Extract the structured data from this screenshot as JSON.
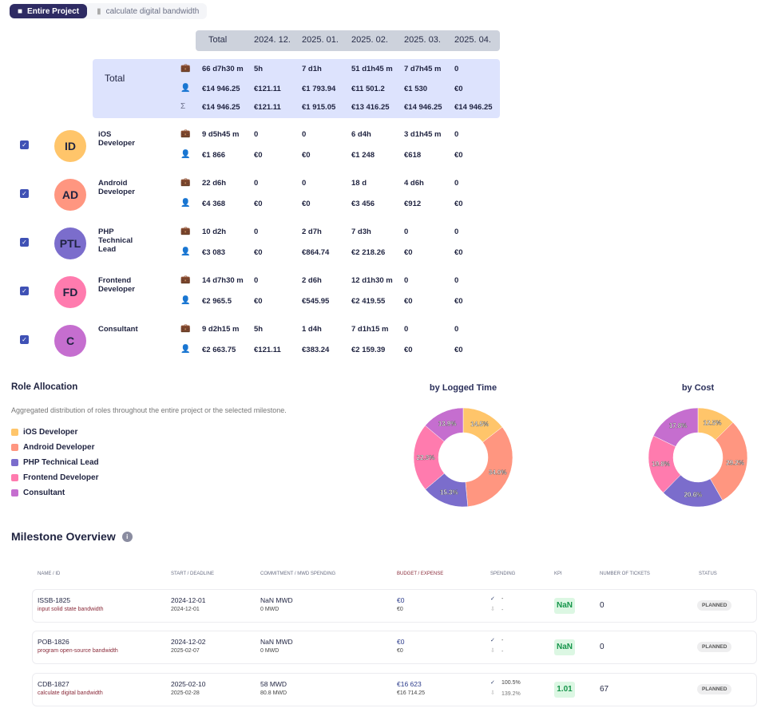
{
  "tabs": {
    "active": "Entire Project",
    "other": "calculate digital bandwidth"
  },
  "header": [
    "Total",
    "2024. 12.",
    "2025. 01.",
    "2025. 02.",
    "2025. 03.",
    "2025. 04."
  ],
  "total": {
    "label": "Total",
    "time": [
      "66 d7h30 m",
      "5h",
      "7 d1h",
      "51 d1h45 m",
      "7 d7h45 m",
      "0"
    ],
    "cost": [
      "€14 946.25",
      "€121.11",
      "€1 793.94",
      "€11 501.2",
      "€1 530",
      "€0"
    ],
    "cumulative": [
      "€14 946.25",
      "€121.11",
      "€1 915.05",
      "€13 416.25",
      "€14 946.25",
      "€14 946.25"
    ]
  },
  "roles": [
    {
      "initials": "ID",
      "name": "iOS Developer",
      "color": "#ffc56a",
      "time": [
        "9 d5h45 m",
        "0",
        "0",
        "6 d4h",
        "3 d1h45 m",
        "0"
      ],
      "cost": [
        "€1 866",
        "€0",
        "€0",
        "€1 248",
        "€618",
        "€0"
      ]
    },
    {
      "initials": "AD",
      "name": "Android Developer",
      "color": "#ff9680",
      "time": [
        "22 d6h",
        "0",
        "0",
        "18 d",
        "4 d6h",
        "0"
      ],
      "cost": [
        "€4 368",
        "€0",
        "€0",
        "€3 456",
        "€912",
        "€0"
      ]
    },
    {
      "initials": "PTL",
      "name": "PHP Technical Lead",
      "color": "#7b6dcc",
      "time": [
        "10 d2h",
        "0",
        "2 d7h",
        "7 d3h",
        "0",
        "0"
      ],
      "cost": [
        "€3 083",
        "€0",
        "€864.74",
        "€2 218.26",
        "€0",
        "€0"
      ]
    },
    {
      "initials": "FD",
      "name": "Frontend Developer",
      "color": "#ff7bae",
      "time": [
        "14 d7h30 m",
        "0",
        "2 d6h",
        "12 d1h30 m",
        "0",
        "0"
      ],
      "cost": [
        "€2 965.5",
        "€0",
        "€545.95",
        "€2 419.55",
        "€0",
        "€0"
      ]
    },
    {
      "initials": "C",
      "name": "Consultant",
      "color": "#c56ecf",
      "time": [
        "9 d2h15 m",
        "5h",
        "1 d4h",
        "7 d1h15 m",
        "0",
        "0"
      ],
      "cost": [
        "€2 663.75",
        "€121.11",
        "€383.24",
        "€2 159.39",
        "€0",
        "€0"
      ]
    }
  ],
  "allocation": {
    "title": "Role Allocation",
    "description": "Aggregated distribution of roles throughout the entire project or the selected milestone."
  },
  "chart_data": [
    {
      "type": "pie",
      "title": "by Logged Time",
      "categories": [
        "iOS Developer",
        "Android Developer",
        "PHP Technical Lead",
        "Frontend Developer",
        "Consultant"
      ],
      "values": [
        14.5,
        34.0,
        15.3,
        22.3,
        13.9
      ],
      "labels": [
        "14.5%",
        "34.0%",
        "15.3%",
        "22.3%",
        "13.9%"
      ]
    },
    {
      "type": "pie",
      "title": "by Cost",
      "categories": [
        "iOS Developer",
        "Android Developer",
        "PHP Technical Lead",
        "Frontend Developer",
        "Consultant"
      ],
      "values": [
        12.5,
        29.2,
        20.6,
        19.8,
        17.8
      ],
      "labels": [
        "12.5%",
        "29.2%",
        "20.6%",
        "19.8%",
        "17.8%"
      ]
    }
  ],
  "milestones": {
    "title": "Milestone Overview",
    "columns": [
      "Name / ID",
      "Start / Deadline",
      "Commitment / MWD Spending",
      "Budget / Expense",
      "Spending",
      "KPI",
      "Number of tickets",
      "Status"
    ],
    "rows": [
      {
        "id": "ISSB-1825",
        "name": "input solid state bandwidth",
        "start": "2024-12-01",
        "deadline": "2024-12-01",
        "commitment": "NaN MWD",
        "mwd": "0 MWD",
        "budget": "€0",
        "expense": "€0",
        "spend1": "-",
        "spend2": "-",
        "kpi": "NaN",
        "tickets": "0",
        "status": "PLANNED"
      },
      {
        "id": "POB-1826",
        "name": "program open-source bandwidth",
        "start": "2024-12-02",
        "deadline": "2025-02-07",
        "commitment": "NaN MWD",
        "mwd": "0 MWD",
        "budget": "€0",
        "expense": "€0",
        "spend1": "-",
        "spend2": "-",
        "kpi": "NaN",
        "tickets": "0",
        "status": "PLANNED"
      },
      {
        "id": "CDB-1827",
        "name": "calculate digital bandwidth",
        "start": "2025-02-10",
        "deadline": "2025-02-28",
        "commitment": "58 MWD",
        "mwd": "80.8 MWD",
        "budget": "€16 623",
        "expense": "€16 714.25",
        "spend1": "100.5%",
        "spend2": "139.2%",
        "kpi": "1.01",
        "tickets": "67",
        "status": "PLANNED"
      }
    ]
  }
}
